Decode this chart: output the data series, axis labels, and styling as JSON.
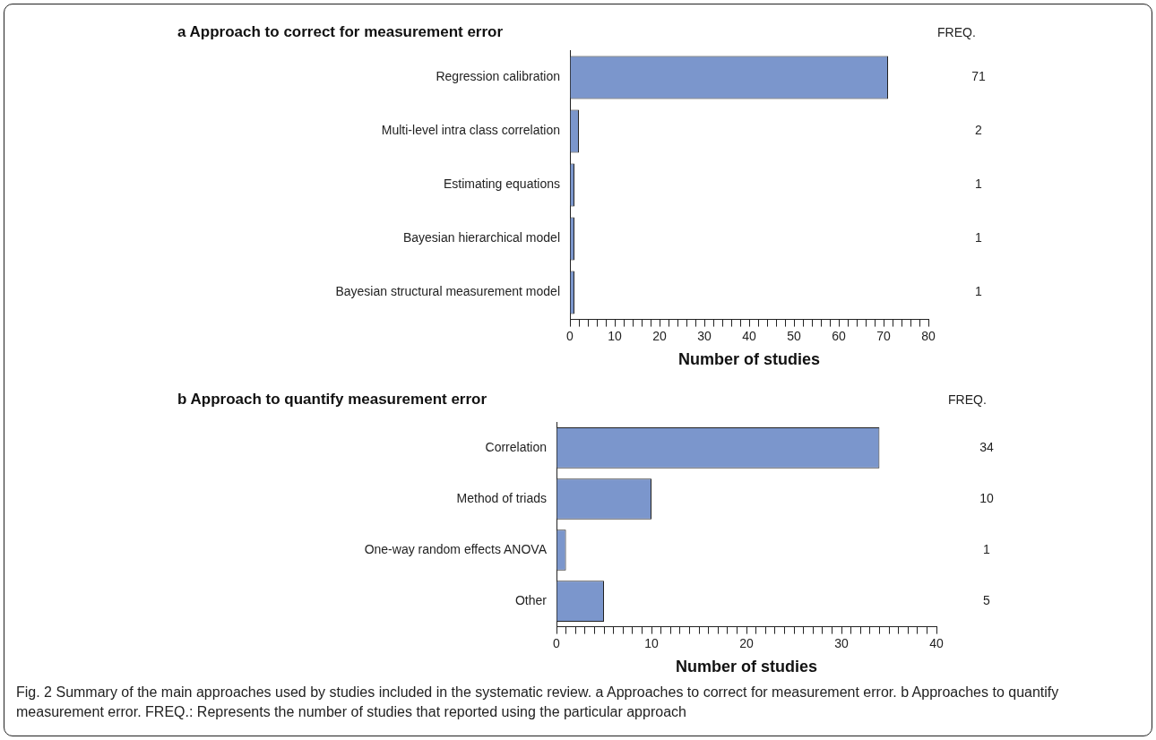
{
  "chart_data": [
    {
      "type": "bar",
      "orientation": "horizontal",
      "title": "a Approach to correct for measurement error",
      "xlabel": "Number of studies",
      "categories": [
        "Regression calibration",
        "Multi-level intra class correlation",
        "Estimating equations",
        "Bayesian hierarchical model",
        "Bayesian structural measurement model"
      ],
      "values": [
        71,
        2,
        1,
        1,
        1
      ],
      "color": "#7b96cc",
      "data_labels": true,
      "grid": false,
      "legend": false,
      "xlim": [
        0,
        80
      ],
      "xticks": [
        0,
        {
          "value": 2,
          "label": null
        },
        {
          "value": 4,
          "label": null
        },
        {
          "value": 6,
          "label": null
        },
        {
          "value": 8,
          "label": null
        },
        10,
        {
          "value": 12,
          "label": null
        },
        {
          "value": 14,
          "label": null
        },
        {
          "value": 16,
          "label": null
        },
        {
          "value": 18,
          "label": null
        },
        20,
        {
          "value": 22,
          "label": null
        },
        {
          "value": 24,
          "label": null
        },
        {
          "value": 26,
          "label": null
        },
        {
          "value": 28,
          "label": null
        },
        30,
        {
          "value": 32,
          "label": null
        },
        {
          "value": 34,
          "label": null
        },
        {
          "value": 36,
          "label": null
        },
        {
          "value": 38,
          "label": null
        },
        40,
        {
          "value": 42,
          "label": null
        },
        {
          "value": 44,
          "label": null
        },
        {
          "value": 46,
          "label": null
        },
        {
          "value": 48,
          "label": null
        },
        50,
        {
          "value": 52,
          "label": null
        },
        {
          "value": 54,
          "label": null
        },
        {
          "value": 56,
          "label": null
        },
        {
          "value": 58,
          "label": null
        },
        60,
        {
          "value": 62,
          "label": null
        },
        {
          "value": 64,
          "label": null
        },
        {
          "value": 66,
          "label": null
        },
        {
          "value": 68,
          "label": null
        },
        70,
        {
          "value": 72,
          "label": null
        },
        {
          "value": 74,
          "label": null
        },
        {
          "value": 76,
          "label": null
        },
        {
          "value": 78,
          "label": null
        },
        80
      ],
      "annotations": [
        "FREQ."
      ]
    },
    {
      "type": "bar",
      "orientation": "horizontal",
      "title": "b Approach to quantify measurement error",
      "xlabel": "Number of studies",
      "categories": [
        "Correlation",
        "Method of triads",
        "One-way random effects ANOVA",
        "Other"
      ],
      "values": [
        34,
        10,
        1,
        5
      ],
      "color": "#7b96cc",
      "data_labels": true,
      "grid": false,
      "legend": false,
      "xlim": [
        0,
        40
      ],
      "xticks": [
        0,
        {
          "value": 1,
          "label": null
        },
        {
          "value": 2,
          "label": null
        },
        {
          "value": 3,
          "label": null
        },
        {
          "value": 4,
          "label": null
        },
        {
          "value": 5,
          "label": null
        },
        {
          "value": 6,
          "label": null
        },
        {
          "value": 7,
          "label": null
        },
        {
          "value": 8,
          "label": null
        },
        {
          "value": 9,
          "label": null
        },
        10,
        {
          "value": 11,
          "label": null
        },
        {
          "value": 12,
          "label": null
        },
        {
          "value": 13,
          "label": null
        },
        {
          "value": 14,
          "label": null
        },
        {
          "value": 15,
          "label": null
        },
        {
          "value": 16,
          "label": null
        },
        {
          "value": 17,
          "label": null
        },
        {
          "value": 18,
          "label": null
        },
        {
          "value": 19,
          "label": null
        },
        20,
        {
          "value": 21,
          "label": null
        },
        {
          "value": 22,
          "label": null
        },
        {
          "value": 23,
          "label": null
        },
        {
          "value": 24,
          "label": null
        },
        {
          "value": 25,
          "label": null
        },
        {
          "value": 26,
          "label": null
        },
        {
          "value": 27,
          "label": null
        },
        {
          "value": 28,
          "label": null
        },
        {
          "value": 29,
          "label": null
        },
        30,
        {
          "value": 31,
          "label": null
        },
        {
          "value": 32,
          "label": null
        },
        {
          "value": 33,
          "label": null
        },
        {
          "value": 34,
          "label": null
        },
        {
          "value": 35,
          "label": null
        },
        {
          "value": 36,
          "label": null
        },
        {
          "value": 37,
          "label": null
        },
        {
          "value": 38,
          "label": null
        },
        {
          "value": 39,
          "label": null
        },
        40
      ],
      "annotations": [
        "FREQ.",
        "Fig. 2 Summary of the main approaches used by studies included in the systematic review. a Approaches to correct for measurement error. b Approaches to quantify measurement error. FREQ.: Represents the number of studies that reported using the particular approach"
      ]
    }
  ]
}
